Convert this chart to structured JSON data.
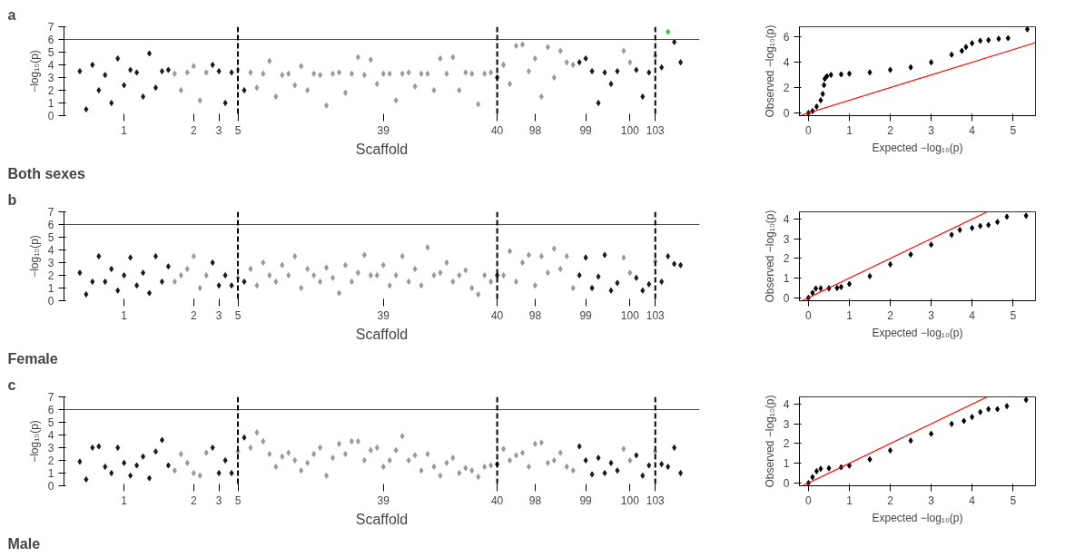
{
  "chart_data": [
    {
      "type": "scatter",
      "xlabel": "Scaffold",
      "ylabel": "−log₁₀(p)",
      "annotations": [
        "a",
        "Both sexes"
      ],
      "marker": "diamond",
      "grid": false,
      "categories": [
        null,
        null,
        null,
        null,
        null,
        null,
        null,
        "1",
        null,
        null,
        null,
        null,
        null,
        null,
        null,
        null,
        null,
        null,
        "2",
        null,
        null,
        null,
        "3",
        null,
        null,
        "5",
        null,
        null,
        null,
        null,
        null,
        null,
        null,
        null,
        null,
        null,
        null,
        null,
        null,
        null,
        null,
        null,
        null,
        null,
        null,
        null,
        null,
        null,
        "39",
        null,
        null,
        null,
        null,
        null,
        null,
        null,
        null,
        null,
        null,
        null,
        null,
        null,
        null,
        null,
        null,
        null,
        "40",
        null,
        null,
        null,
        null,
        null,
        "98",
        null,
        null,
        null,
        null,
        null,
        null,
        null,
        "99",
        null,
        null,
        null,
        null,
        null,
        null,
        "100",
        null,
        null,
        null,
        "103",
        null,
        null,
        null,
        null
      ],
      "ylim": [
        0,
        7
      ],
      "yticks": [
        0,
        1,
        2,
        3,
        4,
        5,
        6,
        7
      ],
      "ref_lines": [
        {
          "axis": "y",
          "value": 6,
          "color": "#ff0000",
          "line_style": "solid"
        },
        {
          "axis": "x",
          "value": "5",
          "color": "#000000",
          "line_style": "dashed"
        },
        {
          "axis": "x",
          "value": "40",
          "color": "#000000",
          "line_style": "dashed"
        },
        {
          "axis": "x",
          "value": "103",
          "color": "#000000",
          "line_style": "dashed"
        }
      ],
      "series": [
        {
          "values": [
            3.5,
            0.5,
            4.0,
            2.0,
            3.2,
            1.0,
            4.5,
            2.4,
            3.6,
            3.4,
            1.5,
            4.9,
            2.2,
            3.5,
            3.6,
            3.3,
            2.0,
            3.4,
            3.9,
            1.2,
            3.4,
            4.0,
            3.5,
            1.0,
            3.4,
            3.6,
            2.0,
            3.4,
            2.2,
            3.3,
            4.3,
            1.5,
            3.2,
            3.3,
            2.4,
            3.9,
            2.0,
            3.3,
            3.2,
            0.8,
            3.3,
            3.4,
            1.8,
            3.3,
            4.6,
            3.2,
            4.4,
            2.5,
            3.3,
            3.3,
            1.2,
            3.3,
            3.4,
            2.3,
            3.3,
            3.3,
            2.0,
            4.5,
            3.3,
            4.6,
            2.0,
            3.4,
            3.3,
            0.9,
            3.3,
            3.4,
            3.0,
            4.0,
            2.5,
            5.5,
            5.6,
            3.5,
            4.5,
            1.5,
            5.4,
            3.0,
            5.1,
            4.2,
            4.0,
            4.2,
            4.5,
            3.5,
            1.0,
            3.4,
            2.5,
            3.5,
            5.1,
            4.2,
            3.6,
            1.5,
            3.4,
            4.7,
            3.8,
            6.6,
            5.8,
            4.2
          ],
          "colors": [
            "#1a1a1a",
            "#1a1a1a",
            "#1a1a1a",
            "#1a1a1a",
            "#1a1a1a",
            "#1a1a1a",
            "#1a1a1a",
            "#1a1a1a",
            "#1a1a1a",
            "#1a1a1a",
            "#1a1a1a",
            "#1a1a1a",
            "#1a1a1a",
            "#1a1a1a",
            "#1a1a1a",
            "#999999",
            "#999999",
            "#999999",
            "#999999",
            "#999999",
            "#999999",
            "#1a1a1a",
            "#1a1a1a",
            "#1a1a1a",
            "#1a1a1a",
            "#999999",
            "#1a1a1a",
            "#999999",
            "#999999",
            "#999999",
            "#999999",
            "#999999",
            "#999999",
            "#999999",
            "#999999",
            "#999999",
            "#999999",
            "#999999",
            "#999999",
            "#999999",
            "#999999",
            "#999999",
            "#999999",
            "#999999",
            "#999999",
            "#999999",
            "#999999",
            "#999999",
            "#999999",
            "#999999",
            "#999999",
            "#999999",
            "#999999",
            "#999999",
            "#999999",
            "#999999",
            "#999999",
            "#999999",
            "#999999",
            "#999999",
            "#999999",
            "#999999",
            "#999999",
            "#999999",
            "#999999",
            "#999999",
            "#1a1a1a",
            "#999999",
            "#999999",
            "#999999",
            "#999999",
            "#999999",
            "#999999",
            "#999999",
            "#999999",
            "#999999",
            "#999999",
            "#999999",
            "#999999",
            "#1a1a1a",
            "#1a1a1a",
            "#1a1a1a",
            "#1a1a1a",
            "#1a1a1a",
            "#1a1a1a",
            "#1a1a1a",
            "#999999",
            "#999999",
            "#1a1a1a",
            "#1a1a1a",
            "#1a1a1a",
            "#999999",
            "#1a1a1a",
            "#33cc33",
            "#1a1a1a",
            "#1a1a1a"
          ]
        }
      ]
    },
    {
      "type": "scatter",
      "xlabel": "Expected −log₁₀(p)",
      "ylabel": "Observed −log₁₀(p)",
      "marker": "diamond",
      "grid": false,
      "xlim": [
        -0.22,
        5.55
      ],
      "ylim": [
        -0.21,
        6.8
      ],
      "xticks": [
        0,
        1,
        2,
        3,
        4,
        5
      ],
      "yticks": [
        0,
        2,
        4,
        6
      ],
      "series": [
        {
          "color": "#000000",
          "x": [
            0,
            0.1,
            0.2,
            0.3,
            0.35,
            0.38,
            0.4,
            0.45,
            0.55,
            0.8,
            1.0,
            1.5,
            2.0,
            2.5,
            3.0,
            3.5,
            3.75,
            3.85,
            4.0,
            4.2,
            4.4,
            4.65,
            4.88,
            5.35
          ],
          "values": [
            0,
            0.15,
            0.5,
            1.0,
            1.5,
            2.2,
            2.7,
            2.9,
            3.0,
            3.05,
            3.1,
            3.2,
            3.4,
            3.6,
            4.0,
            4.6,
            4.9,
            5.2,
            5.5,
            5.7,
            5.75,
            5.85,
            5.9,
            6.6
          ]
        },
        {
          "type": "line",
          "marker": "none",
          "color": "#ff0000",
          "x": [
            -0.21,
            5.55
          ],
          "values": [
            -0.21,
            5.55
          ]
        }
      ]
    },
    {
      "type": "scatter",
      "xlabel": "Scaffold",
      "ylabel": "−log₁₀(p)",
      "annotations": [
        "b",
        "Female"
      ],
      "marker": "diamond",
      "grid": false,
      "categories": [
        null,
        null,
        null,
        null,
        null,
        null,
        null,
        "1",
        null,
        null,
        null,
        null,
        null,
        null,
        null,
        null,
        null,
        null,
        "2",
        null,
        null,
        null,
        "3",
        null,
        null,
        "5",
        null,
        null,
        null,
        null,
        null,
        null,
        null,
        null,
        null,
        null,
        null,
        null,
        null,
        null,
        null,
        null,
        null,
        null,
        null,
        null,
        null,
        null,
        "39",
        null,
        null,
        null,
        null,
        null,
        null,
        null,
        null,
        null,
        null,
        null,
        null,
        null,
        null,
        null,
        null,
        null,
        "40",
        null,
        null,
        null,
        null,
        null,
        "98",
        null,
        null,
        null,
        null,
        null,
        null,
        null,
        "99",
        null,
        null,
        null,
        null,
        null,
        null,
        "100",
        null,
        null,
        null,
        "103",
        null,
        null,
        null,
        null
      ],
      "ylim": [
        0,
        7
      ],
      "yticks": [
        0,
        1,
        2,
        3,
        4,
        5,
        6,
        7
      ],
      "ref_lines": [
        {
          "axis": "y",
          "value": 6,
          "color": "#ff0000",
          "line_style": "solid"
        },
        {
          "axis": "x",
          "value": "5",
          "color": "#000000",
          "line_style": "dashed"
        },
        {
          "axis": "x",
          "value": "40",
          "color": "#000000",
          "line_style": "dashed"
        },
        {
          "axis": "x",
          "value": "103",
          "color": "#000000",
          "line_style": "dashed"
        }
      ],
      "series": [
        {
          "values": [
            2.2,
            0.5,
            1.5,
            3.5,
            1.5,
            2.5,
            0.8,
            2.0,
            3.4,
            1.2,
            2.2,
            0.6,
            3.5,
            1.5,
            2.7,
            1.5,
            2.0,
            2.5,
            3.5,
            1.0,
            2.0,
            3.0,
            1.2,
            2.0,
            1.2,
            1.8,
            1.5,
            2.5,
            1.2,
            3.0,
            2.0,
            1.5,
            2.8,
            2.0,
            3.5,
            1.0,
            2.5,
            2.0,
            1.5,
            2.6,
            1.8,
            0.6,
            2.8,
            1.5,
            2.2,
            3.6,
            2.0,
            2.0,
            2.8,
            1.2,
            2.0,
            3.5,
            1.5,
            2.5,
            1.2,
            4.2,
            2.0,
            2.2,
            3.0,
            1.5,
            2.0,
            2.4,
            1.0,
            0.5,
            2.0,
            1.5,
            2.0,
            2.0,
            3.9,
            1.5,
            3.0,
            3.6,
            1.2,
            3.5,
            2.2,
            4.1,
            2.5,
            3.5,
            1.0,
            2.0,
            3.4,
            1.0,
            1.9,
            3.6,
            0.8,
            1.4,
            3.4,
            2.2,
            1.8,
            0.8,
            1.3,
            3.1,
            1.5,
            3.5,
            2.9,
            2.8
          ],
          "colors": [
            "#1a1a1a",
            "#1a1a1a",
            "#1a1a1a",
            "#1a1a1a",
            "#1a1a1a",
            "#1a1a1a",
            "#1a1a1a",
            "#1a1a1a",
            "#1a1a1a",
            "#1a1a1a",
            "#1a1a1a",
            "#1a1a1a",
            "#1a1a1a",
            "#1a1a1a",
            "#1a1a1a",
            "#999999",
            "#999999",
            "#999999",
            "#999999",
            "#999999",
            "#999999",
            "#1a1a1a",
            "#1a1a1a",
            "#1a1a1a",
            "#1a1a1a",
            "#999999",
            "#1a1a1a",
            "#999999",
            "#999999",
            "#999999",
            "#999999",
            "#999999",
            "#999999",
            "#999999",
            "#999999",
            "#999999",
            "#999999",
            "#999999",
            "#999999",
            "#999999",
            "#999999",
            "#999999",
            "#999999",
            "#999999",
            "#999999",
            "#999999",
            "#999999",
            "#999999",
            "#999999",
            "#999999",
            "#999999",
            "#999999",
            "#999999",
            "#999999",
            "#999999",
            "#999999",
            "#999999",
            "#999999",
            "#999999",
            "#999999",
            "#999999",
            "#999999",
            "#999999",
            "#999999",
            "#999999",
            "#999999",
            "#1a1a1a",
            "#999999",
            "#999999",
            "#999999",
            "#999999",
            "#999999",
            "#999999",
            "#999999",
            "#999999",
            "#999999",
            "#999999",
            "#999999",
            "#999999",
            "#1a1a1a",
            "#1a1a1a",
            "#1a1a1a",
            "#1a1a1a",
            "#1a1a1a",
            "#1a1a1a",
            "#1a1a1a",
            "#999999",
            "#999999",
            "#1a1a1a",
            "#1a1a1a",
            "#1a1a1a",
            "#999999",
            "#1a1a1a",
            "#1a1a1a",
            "#1a1a1a",
            "#1a1a1a"
          ]
        }
      ]
    },
    {
      "type": "scatter",
      "xlabel": "Expected −log₁₀(p)",
      "ylabel": "Observed −log₁₀(p)",
      "marker": "diamond",
      "grid": false,
      "xlim": [
        -0.22,
        5.55
      ],
      "ylim": [
        -0.15,
        4.37
      ],
      "xticks": [
        0,
        1,
        2,
        3,
        4,
        5
      ],
      "yticks": [
        0,
        1,
        2,
        3,
        4
      ],
      "series": [
        {
          "color": "#000000",
          "x": [
            0,
            0.1,
            0.18,
            0.3,
            0.5,
            0.7,
            0.8,
            1.0,
            1.5,
            2.0,
            2.5,
            3.0,
            3.5,
            3.7,
            4.0,
            4.2,
            4.4,
            4.62,
            4.85,
            5.32
          ],
          "values": [
            0,
            0.25,
            0.47,
            0.48,
            0.48,
            0.5,
            0.55,
            0.7,
            1.1,
            1.7,
            2.2,
            2.7,
            3.2,
            3.45,
            3.55,
            3.65,
            3.7,
            3.85,
            4.12,
            4.17
          ]
        },
        {
          "type": "line",
          "marker": "none",
          "color": "#ff0000",
          "x": [
            -0.15,
            4.35
          ],
          "values": [
            -0.15,
            4.35
          ]
        }
      ]
    },
    {
      "type": "scatter",
      "xlabel": "Scaffold",
      "ylabel": "−log₁₀(p)",
      "annotations": [
        "c",
        "Male"
      ],
      "marker": "diamond",
      "grid": false,
      "categories": [
        null,
        null,
        null,
        null,
        null,
        null,
        null,
        "1",
        null,
        null,
        null,
        null,
        null,
        null,
        null,
        null,
        null,
        null,
        "2",
        null,
        null,
        null,
        "3",
        null,
        null,
        "5",
        null,
        null,
        null,
        null,
        null,
        null,
        null,
        null,
        null,
        null,
        null,
        null,
        null,
        null,
        null,
        null,
        null,
        null,
        null,
        null,
        null,
        null,
        "39",
        null,
        null,
        null,
        null,
        null,
        null,
        null,
        null,
        null,
        null,
        null,
        null,
        null,
        null,
        null,
        null,
        null,
        "40",
        null,
        null,
        null,
        null,
        null,
        "98",
        null,
        null,
        null,
        null,
        null,
        null,
        null,
        "99",
        null,
        null,
        null,
        null,
        null,
        null,
        "100",
        null,
        null,
        null,
        "103",
        null,
        null,
        null,
        null
      ],
      "ylim": [
        0,
        7
      ],
      "yticks": [
        0,
        1,
        2,
        3,
        4,
        5,
        6,
        7
      ],
      "ref_lines": [
        {
          "axis": "y",
          "value": 6,
          "color": "#ff0000",
          "line_style": "solid"
        },
        {
          "axis": "x",
          "value": "5",
          "color": "#000000",
          "line_style": "dashed"
        },
        {
          "axis": "x",
          "value": "40",
          "color": "#000000",
          "line_style": "dashed"
        },
        {
          "axis": "x",
          "value": "103",
          "color": "#000000",
          "line_style": "dashed"
        }
      ],
      "series": [
        {
          "values": [
            1.9,
            0.5,
            3.0,
            3.1,
            1.5,
            1.0,
            3.0,
            1.8,
            0.8,
            1.6,
            2.3,
            0.6,
            2.7,
            3.6,
            1.6,
            1.2,
            2.5,
            1.8,
            1.0,
            0.8,
            2.6,
            3.0,
            1.0,
            2.0,
            1.0,
            2.7,
            3.8,
            3.0,
            4.2,
            3.5,
            2.5,
            1.5,
            2.3,
            2.6,
            2.0,
            1.2,
            1.8,
            2.5,
            3.0,
            0.8,
            2.2,
            3.3,
            2.5,
            3.5,
            3.5,
            2.0,
            2.8,
            3.0,
            1.5,
            2.0,
            2.8,
            3.9,
            2.0,
            2.4,
            1.2,
            2.5,
            1.5,
            0.8,
            1.8,
            2.2,
            1.0,
            1.4,
            1.2,
            0.7,
            1.5,
            1.6,
            1.7,
            2.9,
            2.0,
            2.4,
            2.6,
            1.5,
            3.3,
            3.4,
            1.8,
            2.0,
            2.6,
            1.5,
            1.2,
            3.1,
            2.0,
            0.9,
            2.2,
            1.0,
            1.8,
            1.2,
            2.9,
            2.0,
            2.4,
            0.8,
            1.6,
            2.7,
            1.7,
            1.5,
            3.0,
            1.0
          ],
          "colors": [
            "#1a1a1a",
            "#1a1a1a",
            "#1a1a1a",
            "#1a1a1a",
            "#1a1a1a",
            "#1a1a1a",
            "#1a1a1a",
            "#1a1a1a",
            "#1a1a1a",
            "#1a1a1a",
            "#1a1a1a",
            "#1a1a1a",
            "#1a1a1a",
            "#1a1a1a",
            "#1a1a1a",
            "#999999",
            "#999999",
            "#999999",
            "#999999",
            "#999999",
            "#999999",
            "#1a1a1a",
            "#1a1a1a",
            "#1a1a1a",
            "#1a1a1a",
            "#999999",
            "#1a1a1a",
            "#999999",
            "#999999",
            "#999999",
            "#999999",
            "#999999",
            "#999999",
            "#999999",
            "#999999",
            "#999999",
            "#999999",
            "#999999",
            "#999999",
            "#999999",
            "#999999",
            "#999999",
            "#999999",
            "#999999",
            "#999999",
            "#999999",
            "#999999",
            "#999999",
            "#999999",
            "#999999",
            "#999999",
            "#999999",
            "#999999",
            "#999999",
            "#999999",
            "#999999",
            "#999999",
            "#999999",
            "#999999",
            "#999999",
            "#999999",
            "#999999",
            "#999999",
            "#999999",
            "#999999",
            "#999999",
            "#1a1a1a",
            "#999999",
            "#999999",
            "#999999",
            "#999999",
            "#999999",
            "#999999",
            "#999999",
            "#999999",
            "#999999",
            "#999999",
            "#999999",
            "#999999",
            "#1a1a1a",
            "#1a1a1a",
            "#1a1a1a",
            "#1a1a1a",
            "#1a1a1a",
            "#1a1a1a",
            "#1a1a1a",
            "#999999",
            "#999999",
            "#1a1a1a",
            "#1a1a1a",
            "#1a1a1a",
            "#999999",
            "#1a1a1a",
            "#1a1a1a",
            "#1a1a1a",
            "#1a1a1a"
          ]
        }
      ]
    },
    {
      "type": "scatter",
      "xlabel": "Expected −log₁₀(p)",
      "ylabel": "Observed −log₁₀(p)",
      "marker": "diamond",
      "grid": false,
      "xlim": [
        -0.22,
        5.55
      ],
      "ylim": [
        -0.14,
        4.37
      ],
      "xticks": [
        0,
        1,
        2,
        3,
        4,
        5
      ],
      "yticks": [
        0,
        1,
        2,
        3,
        4
      ],
      "series": [
        {
          "color": "#000000",
          "x": [
            0,
            0.1,
            0.2,
            0.3,
            0.5,
            0.8,
            1.0,
            1.5,
            2.0,
            2.5,
            3.0,
            3.5,
            3.8,
            4.0,
            4.2,
            4.4,
            4.62,
            4.85,
            5.32
          ],
          "values": [
            0,
            0.3,
            0.6,
            0.72,
            0.75,
            0.8,
            0.88,
            1.2,
            1.65,
            2.15,
            2.5,
            3.0,
            3.15,
            3.35,
            3.6,
            3.75,
            3.75,
            3.9,
            4.22
          ]
        },
        {
          "type": "line",
          "marker": "none",
          "color": "#ff0000",
          "x": [
            -0.14,
            4.37
          ],
          "values": [
            -0.14,
            4.37
          ]
        }
      ]
    }
  ]
}
